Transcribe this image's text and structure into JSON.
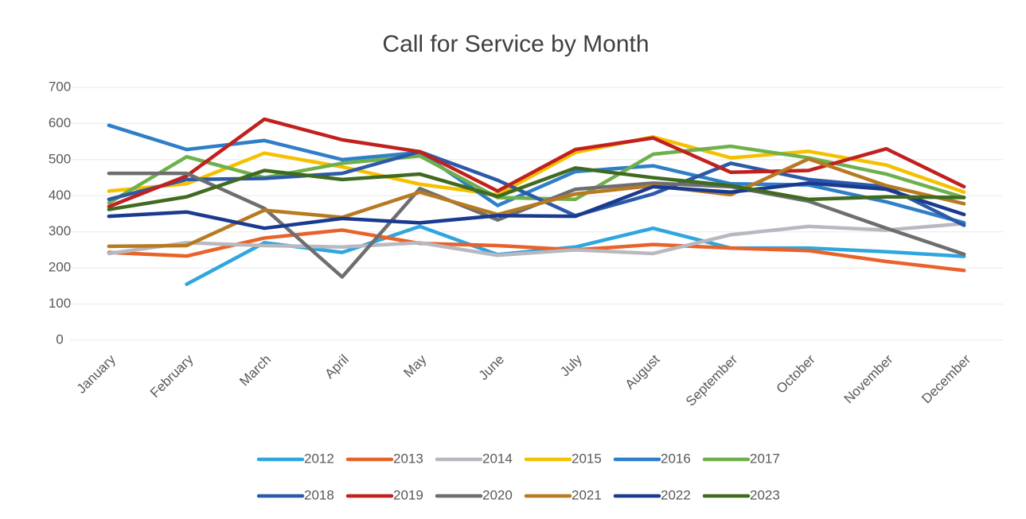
{
  "chart_data": {
    "type": "line",
    "title": "Call for Service by Month",
    "categories": [
      "January",
      "February",
      "March",
      "April",
      "May",
      "June",
      "July",
      "August",
      "September",
      "October",
      "November",
      "December"
    ],
    "ylim": [
      0,
      700
    ],
    "yticks": [
      0,
      100,
      200,
      300,
      400,
      500,
      600,
      700
    ],
    "grid": true,
    "legend": "bottom",
    "series": [
      {
        "name": "2012",
        "color": "#2fa6e0",
        "values": [
          null,
          155,
          270,
          243,
          315,
          237,
          258,
          310,
          255,
          255,
          245,
          232
        ]
      },
      {
        "name": "2013",
        "color": "#e8622a",
        "values": [
          243,
          233,
          283,
          305,
          268,
          262,
          250,
          265,
          255,
          248,
          218,
          193
        ]
      },
      {
        "name": "2014",
        "color": "#b8b8c0",
        "values": [
          240,
          270,
          262,
          258,
          270,
          235,
          250,
          240,
          292,
          315,
          305,
          323
        ]
      },
      {
        "name": "2015",
        "color": "#f5c000",
        "values": [
          413,
          433,
          518,
          480,
          432,
          403,
          520,
          563,
          505,
          523,
          485,
          410
        ]
      },
      {
        "name": "2016",
        "color": "#2f7fc8",
        "values": [
          595,
          528,
          553,
          500,
          520,
          373,
          467,
          483,
          433,
          430,
          383,
          325
        ]
      },
      {
        "name": "2017",
        "color": "#6db04c",
        "values": [
          380,
          508,
          450,
          490,
          510,
          395,
          390,
          515,
          537,
          505,
          460,
          395
        ]
      },
      {
        "name": "2018",
        "color": "#2c5aa8",
        "values": [
          390,
          445,
          448,
          462,
          522,
          443,
          345,
          405,
          490,
          445,
          425,
          318
        ]
      },
      {
        "name": "2019",
        "color": "#c0211f",
        "values": [
          370,
          455,
          612,
          555,
          522,
          413,
          528,
          560,
          465,
          470,
          530,
          425
        ]
      },
      {
        "name": "2020",
        "color": "#6e6e70",
        "values": [
          462,
          462,
          365,
          175,
          420,
          333,
          418,
          435,
          425,
          385,
          310,
          238
        ]
      },
      {
        "name": "2021",
        "color": "#b87a20",
        "values": [
          260,
          262,
          360,
          340,
          410,
          348,
          405,
          428,
          403,
          502,
          428,
          378
        ]
      },
      {
        "name": "2022",
        "color": "#1a3a90",
        "values": [
          343,
          355,
          310,
          337,
          325,
          345,
          343,
          425,
          410,
          435,
          418,
          348
        ]
      },
      {
        "name": "2023",
        "color": "#3f6a20",
        "values": [
          362,
          397,
          470,
          445,
          460,
          398,
          477,
          450,
          428,
          390,
          397,
          395
        ]
      }
    ]
  }
}
